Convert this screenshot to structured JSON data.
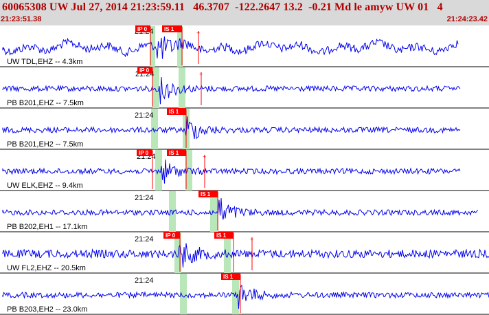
{
  "header": {
    "title": "60065308 UW Jul 27, 2014 21:23:59.11   46.3707  -122.2647 13.2  -0.21 Md le amyw UW 01   4",
    "start_time": "21:23:51.38",
    "end_time": "21:24:23.42"
  },
  "colors": {
    "trace": "#0000ee",
    "pick": "#ff0000",
    "window": "#b9e7b9",
    "header_bg": "#d9d9d9",
    "header_text": "#b00000"
  },
  "tick_label": "21:24",
  "traces": [
    {
      "label": "UW TDL,EHZ -- 4.3km",
      "picks": [
        "IP 0",
        "IS 1"
      ]
    },
    {
      "label": "PB B201,EHZ -- 7.5km",
      "picks": [
        "IP 0"
      ]
    },
    {
      "label": "PB B201,EH2 -- 7.5km",
      "picks": [
        "IS 1"
      ]
    },
    {
      "label": "UW ELK,EHZ -- 9.4km",
      "picks": [
        "IP 0",
        "IS 1"
      ]
    },
    {
      "label": "PB B202,EH1 -- 17.1km",
      "picks": [
        "IS 1"
      ]
    },
    {
      "label": "UW FL2,EHZ -- 20.5km",
      "picks": [
        "IP 0",
        "IS 1"
      ]
    },
    {
      "label": "PB B203,EH2 -- 23.0km",
      "picks": [
        "IS 1"
      ]
    }
  ]
}
